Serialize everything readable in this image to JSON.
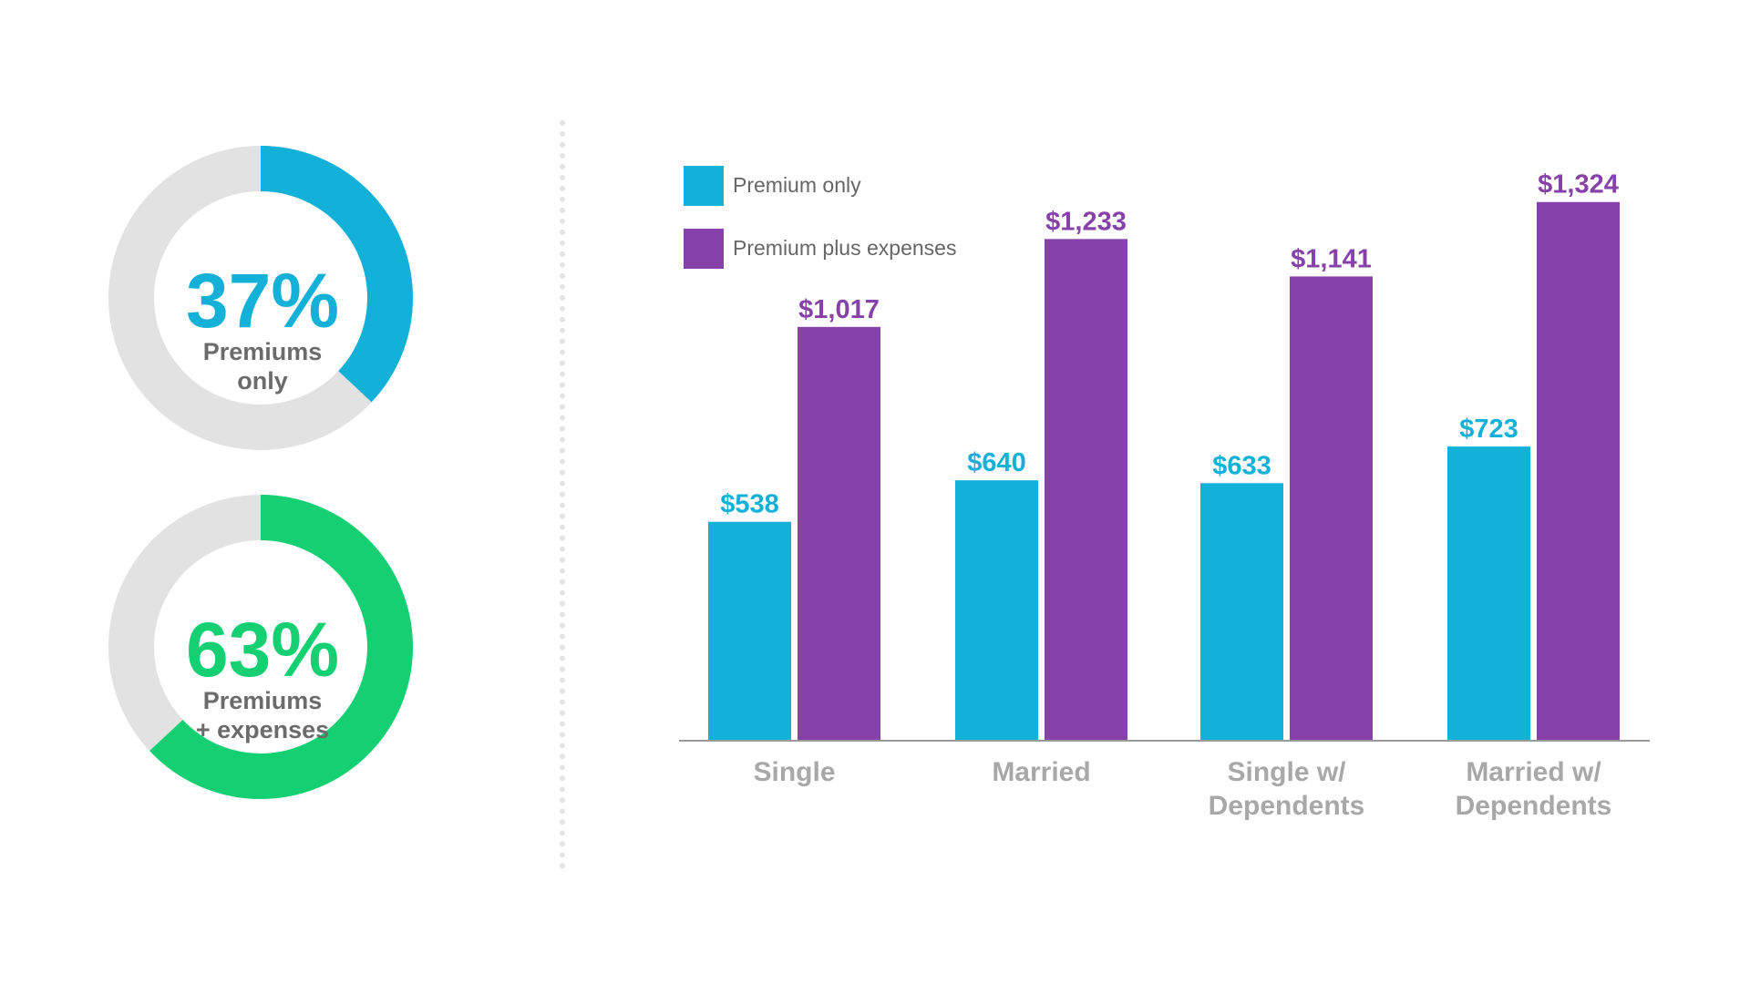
{
  "donuts": [
    {
      "percent": 37,
      "value_label": "37%",
      "label_line1": "Premiums",
      "label_line2": "only",
      "color": "#13b1d8",
      "track_color": "#e2e2e2",
      "label_color": "#6b6b6b"
    },
    {
      "percent": 63,
      "value_label": "63%",
      "label_line1": "Premiums",
      "label_line2": "+ expenses",
      "color": "#14d073",
      "track_color": "#e2e2e2",
      "label_color": "#6b6b6b"
    }
  ],
  "chart_data": {
    "type": "bar",
    "title": "",
    "xlabel": "",
    "ylabel": "",
    "categories": [
      [
        "Single"
      ],
      [
        "Married"
      ],
      [
        "Single w/",
        "Dependents"
      ],
      [
        "Married w/",
        "Dependents"
      ]
    ],
    "series": [
      {
        "name": "Premium only",
        "color": "#13b1d8",
        "values": [
          538,
          640,
          633,
          723
        ],
        "labels": [
          "$538",
          "$640",
          "$633",
          "$723"
        ]
      },
      {
        "name": "Premium plus expenses",
        "color": "#8642a9",
        "values": [
          1017,
          1233,
          1141,
          1324
        ],
        "labels": [
          "$1,017",
          "$1,233",
          "$1,141",
          "$1,324"
        ]
      }
    ],
    "ylim": [
      0,
      1470
    ],
    "grid": false,
    "legend_position": "top-left",
    "axis_color": "#9a9a9a",
    "category_label_color": "#a8a8a8"
  }
}
